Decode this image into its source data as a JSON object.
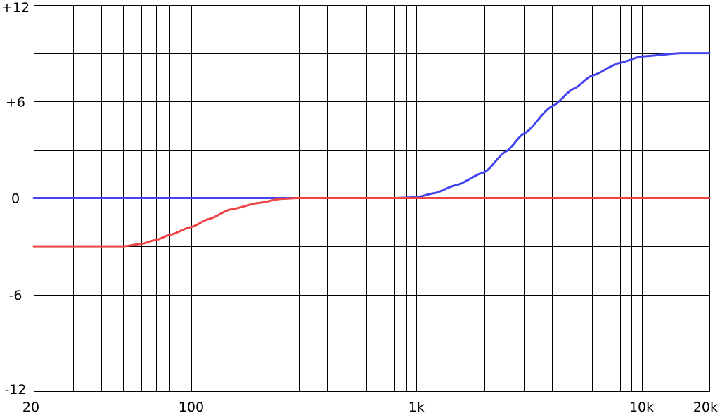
{
  "chart_data": {
    "type": "line",
    "title": "",
    "xlabel": "",
    "ylabel": "",
    "x_scale": "log",
    "xlim": [
      20,
      20000
    ],
    "ylim": [
      -12,
      12
    ],
    "grid": true,
    "x_grid_values": [
      20,
      30,
      40,
      50,
      60,
      70,
      80,
      90,
      100,
      200,
      300,
      400,
      500,
      600,
      700,
      800,
      900,
      1000,
      2000,
      3000,
      4000,
      5000,
      6000,
      7000,
      8000,
      9000,
      10000,
      20000
    ],
    "y_grid_values": [
      -12,
      -9,
      -6,
      -3,
      0,
      3,
      6,
      9,
      12
    ],
    "x_tick_labels": [
      {
        "value": 20,
        "label": "20"
      },
      {
        "value": 100,
        "label": "100"
      },
      {
        "value": 1000,
        "label": "1k"
      },
      {
        "value": 10000,
        "label": "10k"
      },
      {
        "value": 20000,
        "label": "20k"
      }
    ],
    "y_tick_labels": [
      {
        "value": 12,
        "label": "+12"
      },
      {
        "value": 6,
        "label": "+6"
      },
      {
        "value": 0,
        "label": "0"
      },
      {
        "value": -6,
        "label": "-6"
      },
      {
        "value": -12,
        "label": "-12"
      }
    ],
    "series": [
      {
        "color": "#4444ee",
        "x": [
          20,
          100,
          500,
          800,
          1000,
          1200,
          1500,
          2000,
          2500,
          3000,
          4000,
          5000,
          6000,
          8000,
          10000,
          15000,
          20000
        ],
        "y": [
          0,
          0,
          0,
          0,
          0.05,
          0.3,
          0.8,
          1.6,
          2.9,
          4.0,
          5.7,
          6.8,
          7.6,
          8.4,
          8.8,
          9.0,
          9.0
        ]
      },
      {
        "color": "#ee4444",
        "x": [
          20,
          40,
          50,
          60,
          70,
          80,
          100,
          120,
          150,
          200,
          250,
          300,
          1000,
          20000
        ],
        "y": [
          -3,
          -3,
          -3,
          -2.85,
          -2.6,
          -2.3,
          -1.8,
          -1.3,
          -0.7,
          -0.3,
          -0.05,
          0,
          0,
          0
        ]
      }
    ]
  }
}
